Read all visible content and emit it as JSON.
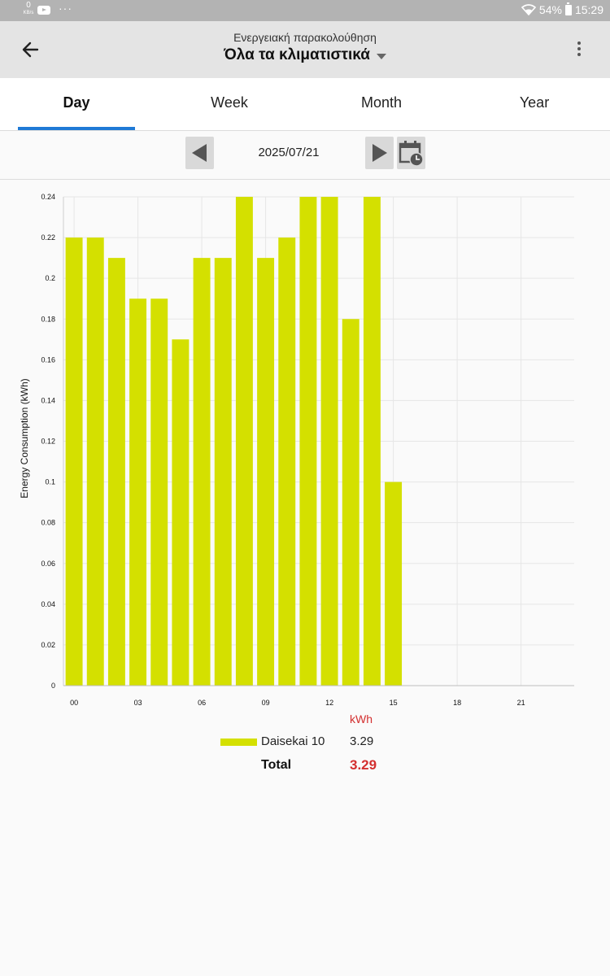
{
  "status_bar": {
    "net_speed_value": "0",
    "net_speed_unit": "KB/s",
    "more_dots": "···",
    "battery": "54%",
    "time": "15:29"
  },
  "header": {
    "subtitle": "Ενεργειακή παρακολούθηση",
    "title": "Όλα τα κλιματιστικά"
  },
  "tabs": [
    {
      "label": "Day"
    },
    {
      "label": "Week"
    },
    {
      "label": "Month"
    },
    {
      "label": "Year"
    }
  ],
  "date_nav": {
    "date": "2025/07/21"
  },
  "colors": {
    "bar": "#d4e000",
    "accent": "#1f7ad6",
    "total": "#d32f2f"
  },
  "chart_data": {
    "type": "bar",
    "ylabel": "Energy Consumption (kWh)",
    "ylim": [
      0,
      0.24
    ],
    "y_ticks": [
      "0",
      "0.02",
      "0.04",
      "0.06",
      "0.08",
      "0.1",
      "0.12",
      "0.14",
      "0.16",
      "0.18",
      "0.2",
      "0.22",
      "0.24"
    ],
    "x_ticks": [
      "00",
      "03",
      "06",
      "09",
      "12",
      "15",
      "18",
      "21"
    ],
    "grid": true,
    "series": [
      {
        "name": "Daisekai 10",
        "hours": [
          0,
          1,
          2,
          3,
          4,
          5,
          6,
          7,
          8,
          9,
          10,
          11,
          12,
          13,
          14,
          15
        ],
        "values": [
          0.22,
          0.22,
          0.21,
          0.19,
          0.19,
          0.17,
          0.21,
          0.21,
          0.24,
          0.21,
          0.22,
          0.24,
          0.24,
          0.18,
          0.24,
          0.1
        ]
      }
    ]
  },
  "legend": {
    "unit": "kWh",
    "items": [
      {
        "name": "Daisekai 10",
        "value": "3.29"
      }
    ],
    "total_label": "Total",
    "total_value": "3.29"
  }
}
